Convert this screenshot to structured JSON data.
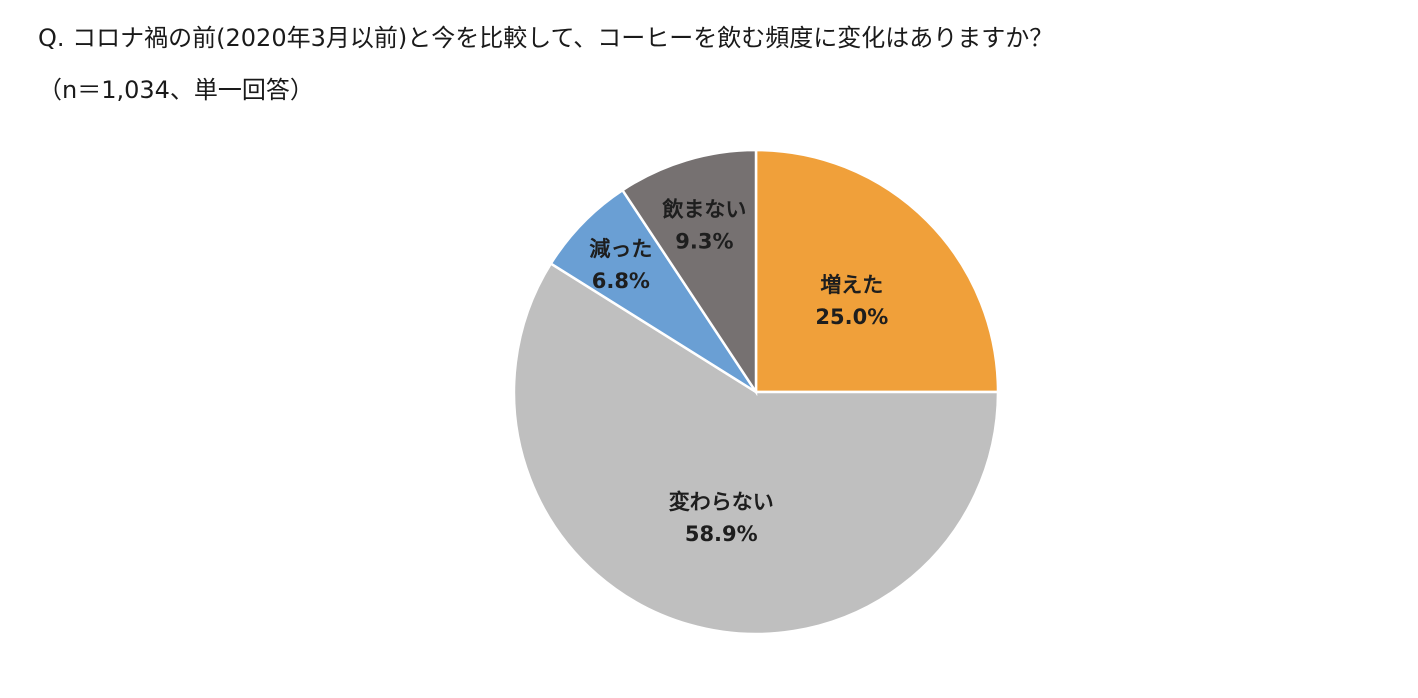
{
  "question": {
    "line1": "Q. コロナ禍の前(2020年3月以前)と今を比較して、コーヒーを飲む頻度に変化はありますか？",
    "line2": "（n＝1,034、単一回答）"
  },
  "chart_data": {
    "type": "pie",
    "title": "",
    "start_angle_deg": 0,
    "direction": "clockwise",
    "slices": [
      {
        "label": "増えた",
        "value": 25.0,
        "display": "25.0%",
        "color": "#f0a03a"
      },
      {
        "label": "変わらない",
        "value": 58.9,
        "display": "58.9%",
        "color": "#bfbfbf"
      },
      {
        "label": "減った",
        "value": 6.8,
        "display": "6.8%",
        "color": "#6a9fd4"
      },
      {
        "label": "飲まない",
        "value": 9.3,
        "display": "9.3%",
        "color": "#767171"
      }
    ]
  }
}
